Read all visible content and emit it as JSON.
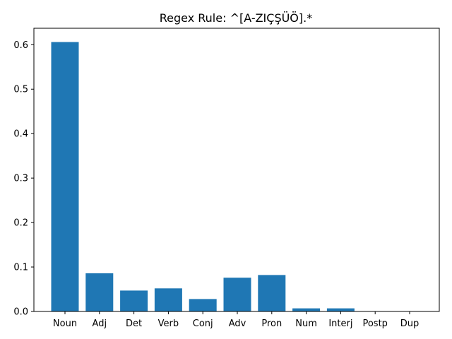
{
  "chart_data": {
    "type": "bar",
    "title": "Regex Rule: ^[A-ZIÇŞÜÖ].*",
    "xlabel": "",
    "ylabel": "",
    "categories": [
      "Noun",
      "Adj",
      "Det",
      "Verb",
      "Conj",
      "Adv",
      "Pron",
      "Num",
      "Interj",
      "Postp",
      "Dup"
    ],
    "values": [
      0.606,
      0.086,
      0.047,
      0.052,
      0.028,
      0.076,
      0.082,
      0.007,
      0.007,
      0.0,
      0.0
    ],
    "ylim": [
      0,
      0.637
    ],
    "yticks": [
      "0.0",
      "0.1",
      "0.2",
      "0.3",
      "0.4",
      "0.5",
      "0.6"
    ],
    "bar_color": "#1f77b4",
    "grid": false,
    "legend": "none"
  }
}
